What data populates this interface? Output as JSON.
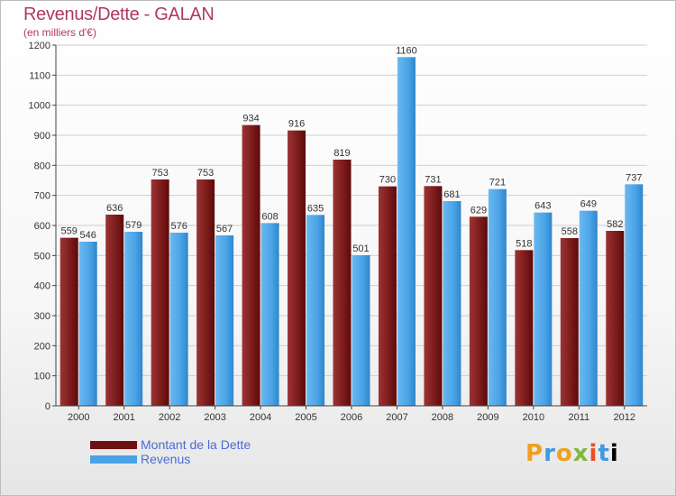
{
  "header": {
    "title": "Revenus/Dette - GALAN",
    "subtitle": "(en milliers d'€)"
  },
  "chart_data": {
    "type": "bar",
    "title": "Revenus/Dette - GALAN",
    "subtitle": "(en milliers d'€)",
    "categories": [
      "2000",
      "2001",
      "2002",
      "2003",
      "2004",
      "2005",
      "2006",
      "2007",
      "2008",
      "2009",
      "2010",
      "2011",
      "2012"
    ],
    "series": [
      {
        "name": "Montant de la Dette",
        "color": "#7a1a1a",
        "values": [
          559,
          636,
          753,
          753,
          934,
          916,
          819,
          730,
          731,
          629,
          518,
          558,
          582
        ]
      },
      {
        "name": "Revenus",
        "color": "#4aa3e6",
        "values": [
          546,
          579,
          576,
          567,
          608,
          635,
          501,
          1160,
          681,
          721,
          643,
          649,
          737
        ]
      }
    ],
    "ylim": [
      0,
      1200
    ],
    "yticks": [
      0,
      100,
      200,
      300,
      400,
      500,
      600,
      700,
      800,
      900,
      1000,
      1100,
      1200
    ],
    "grid": true,
    "legend_position": "bottom-left"
  },
  "legend": {
    "items": [
      {
        "label": "Montant de la Dette",
        "color": "#6e1010"
      },
      {
        "label": "Revenus",
        "color": "#4aa3e6"
      }
    ]
  },
  "logo": {
    "letters": [
      "P",
      "r",
      "o",
      "x",
      "i",
      "t",
      "i"
    ]
  }
}
